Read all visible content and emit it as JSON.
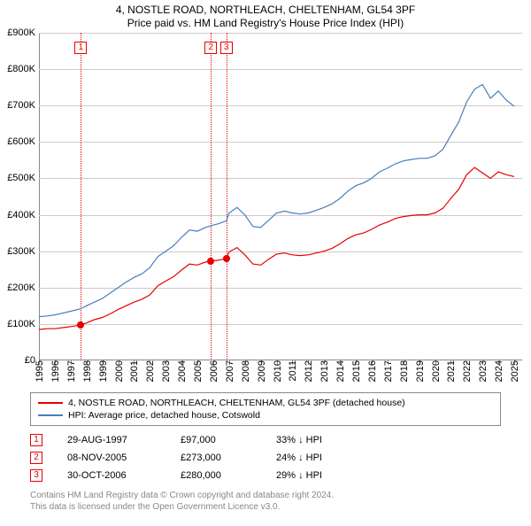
{
  "title": "4, NOSTLE ROAD, NORTHLEACH, CHELTENHAM, GL54 3PF",
  "subtitle": "Price paid vs. HM Land Registry's House Price Index (HPI)",
  "chart": {
    "type": "line",
    "background_color": "#ffffff",
    "grid_color": "#cccccc",
    "axis_color": "#888888",
    "ylim": [
      0,
      900000
    ],
    "yticks": [
      0,
      100000,
      200000,
      300000,
      400000,
      500000,
      600000,
      700000,
      800000,
      900000
    ],
    "ytick_labels": [
      "£0",
      "£100K",
      "£200K",
      "£300K",
      "£400K",
      "£500K",
      "£600K",
      "£700K",
      "£800K",
      "£900K"
    ],
    "xlim": [
      1995,
      2025.5
    ],
    "xticks": [
      1995,
      1996,
      1997,
      1998,
      1999,
      2000,
      2001,
      2002,
      2003,
      2004,
      2005,
      2006,
      2007,
      2008,
      2009,
      2010,
      2011,
      2012,
      2013,
      2014,
      2015,
      2016,
      2017,
      2018,
      2019,
      2020,
      2021,
      2022,
      2023,
      2024,
      2025
    ],
    "label_fontsize": 11,
    "series": [
      {
        "name": "red",
        "color": "#e60000",
        "line_width": 1.2,
        "data": [
          [
            1995.0,
            85000
          ],
          [
            1995.5,
            87000
          ],
          [
            1996.0,
            87000
          ],
          [
            1996.5,
            90000
          ],
          [
            1997.0,
            93000
          ],
          [
            1997.65,
            97000
          ],
          [
            1998.0,
            103000
          ],
          [
            1998.5,
            112000
          ],
          [
            1999.0,
            118000
          ],
          [
            1999.5,
            128000
          ],
          [
            2000.0,
            140000
          ],
          [
            2000.5,
            150000
          ],
          [
            2001.0,
            160000
          ],
          [
            2001.5,
            168000
          ],
          [
            2002.0,
            180000
          ],
          [
            2002.5,
            205000
          ],
          [
            2003.0,
            218000
          ],
          [
            2003.5,
            230000
          ],
          [
            2004.0,
            248000
          ],
          [
            2004.5,
            265000
          ],
          [
            2005.0,
            262000
          ],
          [
            2005.5,
            270000
          ],
          [
            2005.85,
            273000
          ],
          [
            2006.3,
            275000
          ],
          [
            2006.83,
            280000
          ],
          [
            2007.0,
            298000
          ],
          [
            2007.5,
            310000
          ],
          [
            2008.0,
            290000
          ],
          [
            2008.5,
            265000
          ],
          [
            2009.0,
            262000
          ],
          [
            2009.5,
            278000
          ],
          [
            2010.0,
            292000
          ],
          [
            2010.5,
            295000
          ],
          [
            2011.0,
            290000
          ],
          [
            2011.5,
            288000
          ],
          [
            2012.0,
            290000
          ],
          [
            2012.5,
            295000
          ],
          [
            2013.0,
            300000
          ],
          [
            2013.5,
            308000
          ],
          [
            2014.0,
            320000
          ],
          [
            2014.5,
            335000
          ],
          [
            2015.0,
            345000
          ],
          [
            2015.5,
            350000
          ],
          [
            2016.0,
            360000
          ],
          [
            2016.5,
            372000
          ],
          [
            2017.0,
            380000
          ],
          [
            2017.5,
            390000
          ],
          [
            2018.0,
            395000
          ],
          [
            2018.5,
            398000
          ],
          [
            2019.0,
            400000
          ],
          [
            2019.5,
            400000
          ],
          [
            2020.0,
            405000
          ],
          [
            2020.5,
            418000
          ],
          [
            2021.0,
            445000
          ],
          [
            2021.5,
            470000
          ],
          [
            2022.0,
            510000
          ],
          [
            2022.5,
            530000
          ],
          [
            2023.0,
            515000
          ],
          [
            2023.5,
            500000
          ],
          [
            2024.0,
            518000
          ],
          [
            2024.5,
            510000
          ],
          [
            2025.0,
            505000
          ]
        ]
      },
      {
        "name": "blue",
        "color": "#4a7ebb",
        "line_width": 1.2,
        "data": [
          [
            1995.0,
            120000
          ],
          [
            1995.5,
            122000
          ],
          [
            1996.0,
            125000
          ],
          [
            1996.5,
            130000
          ],
          [
            1997.0,
            135000
          ],
          [
            1997.65,
            142000
          ],
          [
            1998.0,
            150000
          ],
          [
            1998.5,
            160000
          ],
          [
            1999.0,
            170000
          ],
          [
            1999.5,
            185000
          ],
          [
            2000.0,
            200000
          ],
          [
            2000.5,
            215000
          ],
          [
            2001.0,
            228000
          ],
          [
            2001.5,
            238000
          ],
          [
            2002.0,
            255000
          ],
          [
            2002.5,
            285000
          ],
          [
            2003.0,
            300000
          ],
          [
            2003.5,
            315000
          ],
          [
            2004.0,
            338000
          ],
          [
            2004.5,
            358000
          ],
          [
            2005.0,
            355000
          ],
          [
            2005.5,
            365000
          ],
          [
            2005.85,
            370000
          ],
          [
            2006.3,
            375000
          ],
          [
            2006.83,
            383000
          ],
          [
            2007.0,
            405000
          ],
          [
            2007.5,
            420000
          ],
          [
            2008.0,
            400000
          ],
          [
            2008.5,
            368000
          ],
          [
            2009.0,
            365000
          ],
          [
            2009.5,
            385000
          ],
          [
            2010.0,
            405000
          ],
          [
            2010.5,
            410000
          ],
          [
            2011.0,
            405000
          ],
          [
            2011.5,
            402000
          ],
          [
            2012.0,
            405000
          ],
          [
            2012.5,
            412000
          ],
          [
            2013.0,
            420000
          ],
          [
            2013.5,
            430000
          ],
          [
            2014.0,
            445000
          ],
          [
            2014.5,
            465000
          ],
          [
            2015.0,
            480000
          ],
          [
            2015.5,
            488000
          ],
          [
            2016.0,
            500000
          ],
          [
            2016.5,
            518000
          ],
          [
            2017.0,
            528000
          ],
          [
            2017.5,
            540000
          ],
          [
            2018.0,
            548000
          ],
          [
            2018.5,
            552000
          ],
          [
            2019.0,
            555000
          ],
          [
            2019.5,
            555000
          ],
          [
            2020.0,
            562000
          ],
          [
            2020.5,
            580000
          ],
          [
            2021.0,
            618000
          ],
          [
            2021.5,
            655000
          ],
          [
            2022.0,
            710000
          ],
          [
            2022.5,
            745000
          ],
          [
            2023.0,
            758000
          ],
          [
            2023.5,
            720000
          ],
          [
            2024.0,
            740000
          ],
          [
            2024.5,
            715000
          ],
          [
            2025.0,
            698000
          ]
        ]
      }
    ],
    "sale_markers": [
      {
        "n": "1",
        "year": 1997.65,
        "value": 97000,
        "color": "#e60000"
      },
      {
        "n": "2",
        "year": 2005.85,
        "value": 273000,
        "color": "#e60000"
      },
      {
        "n": "3",
        "year": 2006.83,
        "value": 280000,
        "color": "#e60000"
      }
    ]
  },
  "legend": {
    "items": [
      {
        "color": "#e60000",
        "label": "4, NOSTLE ROAD, NORTHLEACH, CHELTENHAM, GL54 3PF (detached house)"
      },
      {
        "color": "#4a7ebb",
        "label": "HPI: Average price, detached house, Cotswold"
      }
    ]
  },
  "sales": [
    {
      "n": "1",
      "color": "#e60000",
      "date": "29-AUG-1997",
      "price": "£97,000",
      "delta": "33% ↓ HPI"
    },
    {
      "n": "2",
      "color": "#e60000",
      "date": "08-NOV-2005",
      "price": "£273,000",
      "delta": "24% ↓ HPI"
    },
    {
      "n": "3",
      "color": "#e60000",
      "date": "30-OCT-2006",
      "price": "£280,000",
      "delta": "29% ↓ HPI"
    }
  ],
  "footer": {
    "line1": "Contains HM Land Registry data © Crown copyright and database right 2024.",
    "line2": "This data is licensed under the Open Government Licence v3.0."
  }
}
